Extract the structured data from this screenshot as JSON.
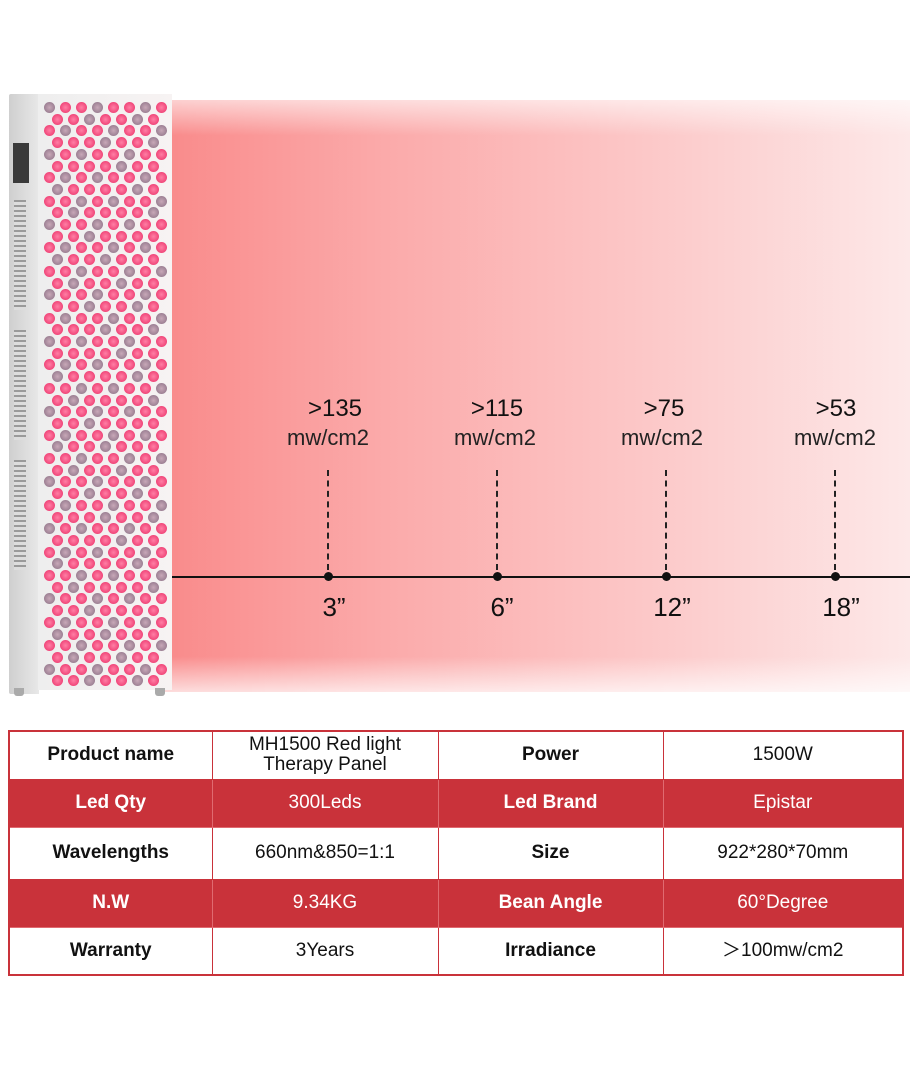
{
  "colors": {
    "accent": "#c9323a",
    "glow": "#f98a8a"
  },
  "measurements": [
    {
      "irradiance": ">135",
      "unit": "mw/cm2",
      "distance": "3”"
    },
    {
      "irradiance": ">115",
      "unit": "mw/cm2",
      "distance": "6”"
    },
    {
      "irradiance": ">75",
      "unit": "mw/cm2",
      "distance": "12”"
    },
    {
      "irradiance": ">53",
      "unit": "mw/cm2",
      "distance": "18”"
    }
  ],
  "specs": [
    [
      {
        "k": "Product name",
        "v": "MH1500 Red light Therapy Panel"
      },
      {
        "k": "Power",
        "v": "1500W"
      }
    ],
    [
      {
        "k": "Led Qty",
        "v": "300Leds"
      },
      {
        "k": "Led Brand",
        "v": "Epistar"
      }
    ],
    [
      {
        "k": "Wavelengths",
        "v": "660nm&850=1:1"
      },
      {
        "k": "Size",
        "v": "922*280*70mm"
      }
    ],
    [
      {
        "k": "N.W",
        "v": "9.34KG"
      },
      {
        "k": "Bean Angle",
        "v": "60°Degree"
      }
    ],
    [
      {
        "k": "Warranty",
        "v": "3Years"
      },
      {
        "k": "Irradiance",
        "v": "＞100mw/cm2"
      }
    ]
  ]
}
